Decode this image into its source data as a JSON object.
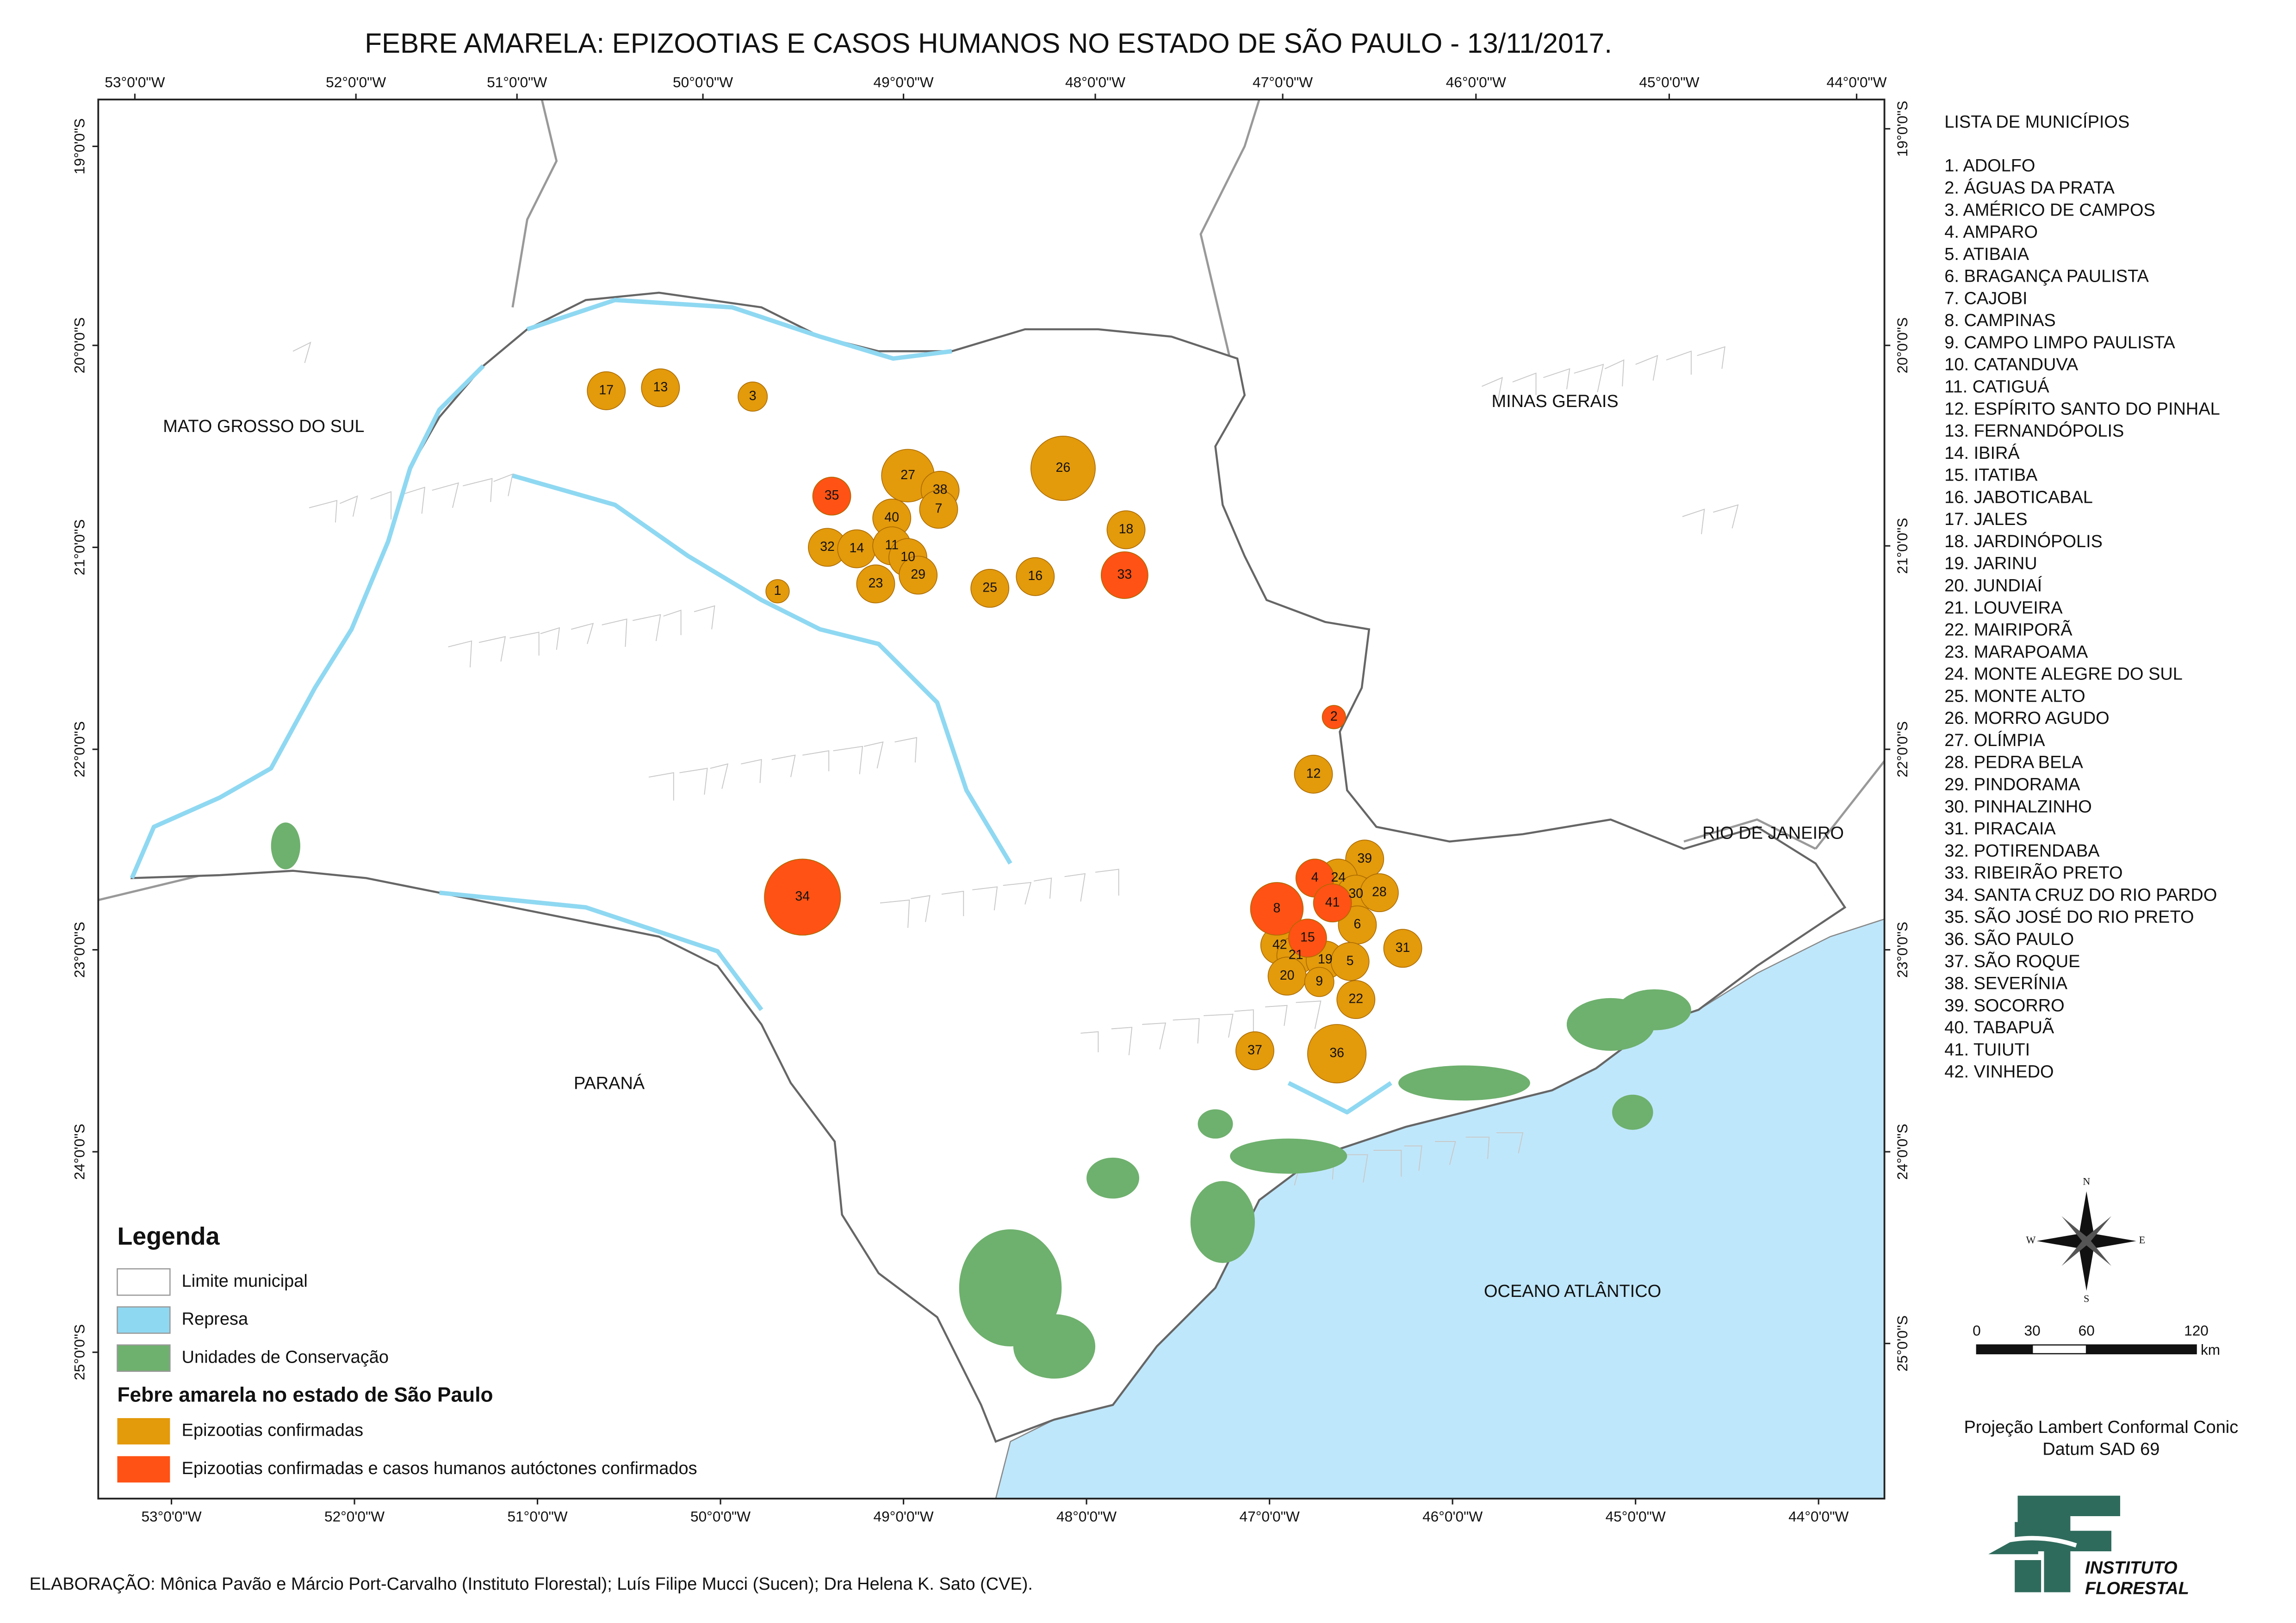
{
  "title": "FEBRE AMARELA: EPIZOOTIAS E CASOS HUMANOS NO ESTADO DE SÃO PAULO - 13/11/2017.",
  "frame": {
    "top_labels": [
      "53°0'0\"W",
      "52°0'0\"W",
      "51°0'0\"W",
      "50°0'0\"W",
      "49°0'0\"W",
      "48°0'0\"W",
      "47°0'0\"W",
      "46°0'0\"W",
      "45°0'0\"W",
      "44°0'0\"W"
    ],
    "bottom_labels": [
      "53°0'0\"W",
      "52°0'0\"W",
      "51°0'0\"W",
      "50°0'0\"W",
      "49°0'0\"W",
      "48°0'0\"W",
      "47°0'0\"W",
      "46°0'0\"W",
      "45°0'0\"W",
      "44°0'0\"W"
    ],
    "left_labels": [
      "19°0'0\"S",
      "20°0'0\"S",
      "21°0'0\"S",
      "22°0'0\"S",
      "23°0'0\"S",
      "24°0'0\"S",
      "25°0'0\"S"
    ],
    "right_labels": [
      "19°0'0\"S",
      "20°0'0\"S",
      "21°0'0\"S",
      "22°0'0\"S",
      "23°0'0\"S",
      "24°0'0\"S",
      "25°0'0\"S"
    ]
  },
  "regions": [
    "MATO GROSSO DO SUL",
    "MINAS GERAIS",
    "RIO DE JANEIRO",
    "PARANÁ",
    "OCEANO ATLÂNTICO"
  ],
  "markers": {
    "epizootias": [
      "17",
      "13",
      "3",
      "27",
      "38",
      "7",
      "40",
      "32",
      "14",
      "11",
      "10",
      "29",
      "23",
      "1",
      "26",
      "18",
      "25",
      "16",
      "12",
      "39",
      "24",
      "30",
      "28",
      "6",
      "42",
      "31",
      "21",
      "19",
      "5",
      "20",
      "9",
      "22",
      "37",
      "36"
    ],
    "epizootias_e_casos": [
      "35",
      "33",
      "2",
      "34",
      "4",
      "41",
      "8",
      "15"
    ]
  },
  "municipalities": {
    "heading": "LISTA DE MUNICÍPIOS",
    "items": [
      "1. ADOLFO",
      "2. ÁGUAS DA PRATA",
      "3. AMÉRICO DE CAMPOS",
      "4. AMPARO",
      "5. ATIBAIA",
      "6. BRAGANÇA PAULISTA",
      "7. CAJOBI",
      "8. CAMPINAS",
      "9. CAMPO LIMPO PAULISTA",
      "10. CATANDUVA",
      "11. CATIGUÁ",
      "12. ESPÍRITO SANTO DO PINHAL",
      "13. FERNANDÓPOLIS",
      "14. IBIRÁ",
      "15. ITATIBA",
      "16. JABOTICABAL",
      "17. JALES",
      "18. JARDINÓPOLIS",
      "19. JARINU",
      "20. JUNDIAÍ",
      "21. LOUVEIRA",
      "22. MAIRIPORÃ",
      "23. MARAPOAMA",
      "24. MONTE ALEGRE DO SUL",
      "25. MONTE ALTO",
      "26. MORRO AGUDO",
      "27. OLÍMPIA",
      "28. PEDRA BELA",
      "29. PINDORAMA",
      "30. PINHALZINHO",
      "31. PIRACAIA",
      "32. POTIRENDABA",
      "33. RIBEIRÃO PRETO",
      "34. SANTA CRUZ DO RIO PARDO",
      "35. SÃO JOSÉ DO RIO PRETO",
      "36. SÃO PAULO",
      "37. SÃO ROQUE",
      "38. SEVERÍNIA",
      "39. SOCORRO",
      "40. TABAPUÃ",
      "41. TUIUTI",
      "42. VINHEDO"
    ]
  },
  "legend": {
    "title": "Legenda",
    "items": [
      "Limite municipal",
      "Represa",
      "Unidades de Conservação"
    ],
    "subtitle": "Febre amarela no estado de São Paulo",
    "fever_items": [
      "Epizootias confirmadas",
      "Epizootias confirmadas e casos humanos autóctones confirmados"
    ]
  },
  "compass": [
    "N",
    "E",
    "S",
    "W"
  ],
  "scale": {
    "ticks": [
      "0",
      "30",
      "60",
      "120"
    ],
    "unit": "km"
  },
  "projection": [
    "Projeção Lambert Conformal Conic",
    "Datum SAD 69"
  ],
  "credit": "ELABORAÇÃO: Mônica Pavão e Márcio Port-Carvalho (Instituto Florestal); Luís Filipe Mucci (Sucen); Dra Helena K. Sato (CVE).",
  "logo": [
    "INSTITUTO",
    "FLORESTAL"
  ]
}
